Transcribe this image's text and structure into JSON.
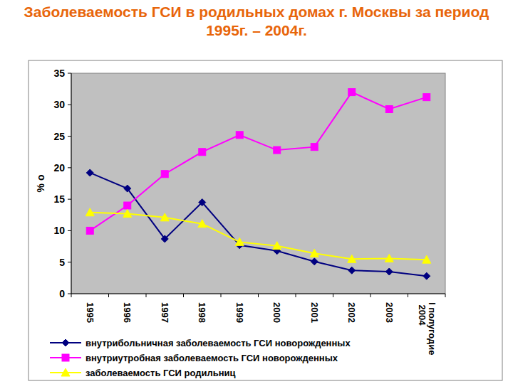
{
  "chart_data": {
    "type": "line",
    "title": "Заболеваемость ГСИ в родильных домах г. Москвы за период 1995г. – 2004г.",
    "y_label": "% о",
    "categories": [
      "1995",
      "1996",
      "1997",
      "1998",
      "1999",
      "2000",
      "2001",
      "2002",
      "2003",
      "I полугодие 2004"
    ],
    "series": [
      {
        "name": "внутрибольничная заболеваемость ГСИ новорожденных",
        "color": "#000080",
        "marker": "diamond",
        "values": [
          19.2,
          16.7,
          8.7,
          14.5,
          7.7,
          6.8,
          5.1,
          3.7,
          3.5,
          2.8
        ]
      },
      {
        "name": "внутриутробная заболеваемость ГСИ новорожденных",
        "color": "#FF00FF",
        "marker": "square",
        "values": [
          10.0,
          14.0,
          19.0,
          22.5,
          25.2,
          22.8,
          23.3,
          32.0,
          29.3,
          31.2
        ]
      },
      {
        "name": "заболеваемость ГСИ родильниц",
        "color": "#FFFF00",
        "marker": "triangle",
        "values": [
          12.9,
          12.7,
          12.1,
          11.1,
          8.2,
          7.6,
          6.4,
          5.5,
          5.6,
          5.4
        ]
      }
    ],
    "ylim": [
      0,
      35
    ],
    "yticks": [
      0,
      5,
      10,
      15,
      20,
      25,
      30,
      35
    ],
    "grid": false,
    "legend": "bottom"
  }
}
